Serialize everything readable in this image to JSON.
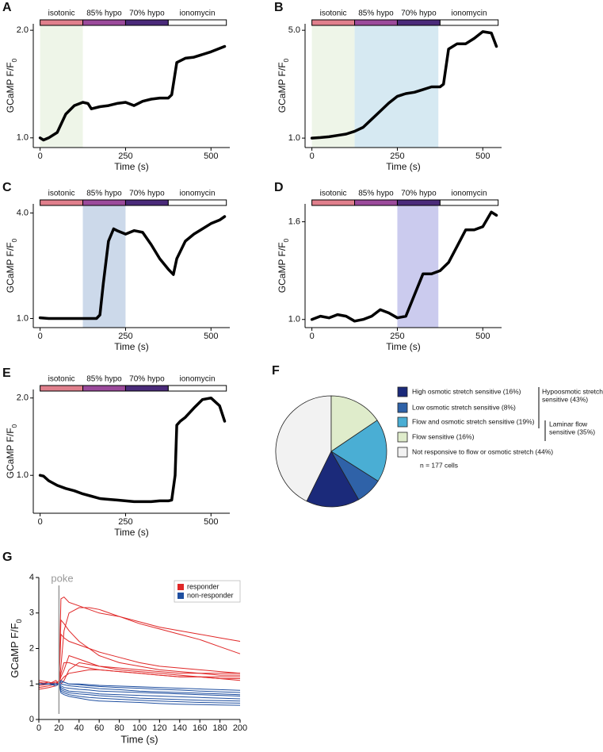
{
  "chart_data": [
    {
      "type": "line",
      "panel": "A",
      "xlabel": "Time (s)",
      "ylabel": {
        "text": "GCaMP F/F",
        "sub": "0"
      },
      "phases": [
        {
          "name": "isotonic",
          "start": 0,
          "end": 125,
          "color": "#e07f8c"
        },
        {
          "name": "85% hypo",
          "start": 125,
          "end": 250,
          "color": "#9b4a9b"
        },
        {
          "name": "70% hypo",
          "start": 250,
          "end": 375,
          "color": "#4a2a7a"
        },
        {
          "name": "ionomycin",
          "start": 375,
          "end": 545,
          "color": "#ffffff"
        }
      ],
      "shading": [
        {
          "start": 0,
          "end": 125,
          "color": "#eef5e8"
        }
      ],
      "x": [
        0,
        10,
        25,
        50,
        75,
        100,
        125,
        140,
        150,
        175,
        200,
        225,
        250,
        275,
        300,
        325,
        350,
        375,
        385,
        400,
        425,
        450,
        500,
        540
      ],
      "values": [
        1.0,
        0.98,
        1.0,
        1.05,
        1.22,
        1.3,
        1.33,
        1.32,
        1.27,
        1.29,
        1.3,
        1.32,
        1.33,
        1.3,
        1.34,
        1.36,
        1.37,
        1.37,
        1.4,
        1.7,
        1.74,
        1.75,
        1.8,
        1.85
      ],
      "color": "#000000",
      "xlim": [
        -20,
        555
      ],
      "xticks": [
        0,
        250,
        500
      ],
      "ylim": [
        0.91,
        2.06
      ],
      "yticks": [
        {
          "value": 1,
          "label": "1.0"
        },
        {
          "value": 2,
          "label": "2.0"
        }
      ]
    },
    {
      "type": "line",
      "panel": "B",
      "xlabel": "Time (s)",
      "ylabel": {
        "text": "GCaMP F/F",
        "sub": "0"
      },
      "phases": [
        {
          "name": "isotonic",
          "start": 0,
          "end": 125,
          "color": "#e07f8c"
        },
        {
          "name": "85% hypo",
          "start": 125,
          "end": 250,
          "color": "#9b4a9b"
        },
        {
          "name": "70% hypo",
          "start": 250,
          "end": 375,
          "color": "#4a2a7a"
        },
        {
          "name": "ionomycin",
          "start": 375,
          "end": 545,
          "color": "#ffffff"
        }
      ],
      "shading": [
        {
          "start": 0,
          "end": 125,
          "color": "#eef5e8"
        },
        {
          "start": 125,
          "end": 370,
          "color": "#d6e9f2"
        }
      ],
      "x": [
        0,
        25,
        50,
        75,
        100,
        125,
        150,
        175,
        200,
        225,
        250,
        275,
        300,
        325,
        350,
        375,
        385,
        400,
        425,
        450,
        475,
        500,
        525,
        540
      ],
      "values": [
        1.0,
        1.02,
        1.05,
        1.1,
        1.15,
        1.25,
        1.4,
        1.7,
        2.0,
        2.3,
        2.55,
        2.65,
        2.7,
        2.8,
        2.9,
        2.9,
        3.0,
        4.3,
        4.5,
        4.5,
        4.7,
        4.95,
        4.9,
        4.4
      ],
      "color": "#000000",
      "xlim": [
        -20,
        555
      ],
      "xticks": [
        0,
        250,
        500
      ],
      "ylim": [
        0.65,
        5.24
      ],
      "yticks": [
        {
          "value": 1,
          "label": "1.0"
        },
        {
          "value": 5,
          "label": "5.0"
        }
      ]
    },
    {
      "type": "line",
      "panel": "C",
      "xlabel": "Time (s)",
      "ylabel": {
        "text": "GCaMP F/F",
        "sub": "0"
      },
      "phases": [
        {
          "name": "isotonic",
          "start": 0,
          "end": 125,
          "color": "#e07f8c"
        },
        {
          "name": "85% hypo",
          "start": 125,
          "end": 250,
          "color": "#9b4a9b"
        },
        {
          "name": "70% hypo",
          "start": 250,
          "end": 375,
          "color": "#4a2a7a"
        },
        {
          "name": "ionomycin",
          "start": 375,
          "end": 545,
          "color": "#ffffff"
        }
      ],
      "shading": [
        {
          "start": 125,
          "end": 250,
          "color": "#ccd9ea"
        }
      ],
      "x": [
        0,
        25,
        50,
        75,
        100,
        125,
        150,
        165,
        175,
        185,
        200,
        215,
        225,
        250,
        275,
        300,
        325,
        350,
        375,
        390,
        400,
        425,
        450,
        475,
        500,
        525,
        540
      ],
      "values": [
        1.02,
        1.0,
        1.0,
        1.0,
        1.0,
        1.0,
        1.0,
        1.0,
        1.1,
        2.0,
        3.2,
        3.55,
        3.5,
        3.4,
        3.5,
        3.45,
        3.1,
        2.7,
        2.4,
        2.25,
        2.7,
        3.2,
        3.4,
        3.55,
        3.7,
        3.8,
        3.9
      ],
      "color": "#000000",
      "xlim": [
        -20,
        555
      ],
      "xticks": [
        0,
        250,
        500
      ],
      "ylim": [
        0.74,
        4.26
      ],
      "yticks": [
        {
          "value": 1,
          "label": "1.0"
        },
        {
          "value": 4,
          "label": "4.0"
        }
      ]
    },
    {
      "type": "line",
      "panel": "D",
      "xlabel": "Time (s)",
      "ylabel": {
        "text": "GCaMP F/F",
        "sub": "0"
      },
      "phases": [
        {
          "name": "isotonic",
          "start": 0,
          "end": 125,
          "color": "#e07f8c"
        },
        {
          "name": "85% hypo",
          "start": 125,
          "end": 250,
          "color": "#9b4a9b"
        },
        {
          "name": "70% hypo",
          "start": 250,
          "end": 375,
          "color": "#4a2a7a"
        },
        {
          "name": "ionomycin",
          "start": 375,
          "end": 545,
          "color": "#ffffff"
        }
      ],
      "shading": [
        {
          "start": 250,
          "end": 370,
          "color": "#cbcbee"
        }
      ],
      "x": [
        0,
        25,
        50,
        75,
        100,
        125,
        150,
        175,
        200,
        225,
        250,
        275,
        300,
        325,
        350,
        375,
        400,
        425,
        450,
        475,
        500,
        525,
        540
      ],
      "values": [
        1.0,
        1.02,
        1.01,
        1.03,
        1.02,
        0.99,
        1.0,
        1.02,
        1.06,
        1.04,
        1.01,
        1.02,
        1.15,
        1.28,
        1.28,
        1.3,
        1.35,
        1.45,
        1.55,
        1.55,
        1.57,
        1.66,
        1.64
      ],
      "color": "#000000",
      "xlim": [
        -20,
        555
      ],
      "xticks": [
        0,
        250,
        500
      ],
      "ylim": [
        0.95,
        1.71
      ],
      "yticks": [
        {
          "value": 1,
          "label": "1.0"
        },
        1.6
      ]
    },
    {
      "type": "line",
      "panel": "E",
      "xlabel": "Time (s)",
      "ylabel": {
        "text": "GCaMP F/F",
        "sub": "0"
      },
      "phases": [
        {
          "name": "isotonic",
          "start": 0,
          "end": 125,
          "color": "#e07f8c"
        },
        {
          "name": "85% hypo",
          "start": 125,
          "end": 250,
          "color": "#9b4a9b"
        },
        {
          "name": "70% hypo",
          "start": 250,
          "end": 375,
          "color": "#4a2a7a"
        },
        {
          "name": "ionomycin",
          "start": 375,
          "end": 545,
          "color": "#ffffff"
        }
      ],
      "shading": [],
      "x": [
        0,
        10,
        25,
        50,
        75,
        100,
        125,
        150,
        175,
        200,
        225,
        250,
        275,
        300,
        325,
        350,
        375,
        385,
        395,
        400,
        410,
        425,
        450,
        475,
        500,
        525,
        540
      ],
      "values": [
        1.0,
        0.99,
        0.93,
        0.87,
        0.83,
        0.8,
        0.76,
        0.73,
        0.7,
        0.69,
        0.68,
        0.67,
        0.66,
        0.66,
        0.66,
        0.67,
        0.67,
        0.68,
        1.0,
        1.65,
        1.7,
        1.75,
        1.87,
        1.98,
        2.0,
        1.9,
        1.7
      ],
      "color": "#000000",
      "xlim": [
        -20,
        555
      ],
      "xticks": [
        0,
        250,
        500
      ],
      "ylim": [
        0.51,
        2.11
      ],
      "yticks": [
        {
          "value": 1,
          "label": "1.0"
        },
        {
          "value": 2,
          "label": "2.0"
        }
      ]
    },
    {
      "type": "pie",
      "panel": "F",
      "categories": [
        "High osmotic stretch sensitive (16%)",
        "Low osmotic stretch sensitive (8%)",
        "Flow and osmotic stretch sensitive (19%)",
        "Flow sensitive (16%)",
        "Not responsive to flow or osmotic stretch (44%)"
      ],
      "values": [
        16,
        8,
        19,
        16,
        44
      ],
      "colors": [
        "#1b2a7a",
        "#2f62a8",
        "#4aaed4",
        "#dfeccb",
        "#f2f2f2"
      ],
      "annotations": [
        [
          "Hypoosmotic stretch",
          "sensitive (43%)"
        ],
        [
          "Laminar flow",
          "sensitive (35%)"
        ]
      ],
      "note": "n = 177 cells"
    },
    {
      "type": "multiline",
      "panel": "G",
      "xlabel": "Time (s)",
      "ylabel": {
        "text": "GCaMP F/F",
        "sub": "0"
      },
      "annotation": {
        "text": "poke",
        "x": 20
      },
      "groups": [
        {
          "name": "responder",
          "color": "#e02828"
        },
        {
          "name": "non-responder",
          "color": "#1f4fa0"
        }
      ],
      "x": [
        0,
        10,
        17,
        20,
        22,
        25,
        30,
        40,
        50,
        60,
        80,
        100,
        120,
        140,
        160,
        180,
        200
      ],
      "series": [
        {
          "group": 0,
          "values": [
            1.1,
            1.05,
            1.0,
            1.0,
            3.4,
            3.45,
            3.3,
            3.2,
            3.1,
            3.0,
            2.9,
            2.75,
            2.6,
            2.5,
            2.4,
            2.3,
            2.2
          ]
        },
        {
          "group": 0,
          "values": [
            1.0,
            1.0,
            1.05,
            1.0,
            1.5,
            2.5,
            3.0,
            3.15,
            3.15,
            3.1,
            2.9,
            2.7,
            2.55,
            2.4,
            2.25,
            2.05,
            1.85
          ]
        },
        {
          "group": 0,
          "values": [
            1.0,
            1.0,
            1.0,
            1.1,
            2.8,
            2.7,
            2.5,
            2.2,
            2.0,
            1.8,
            1.6,
            1.5,
            1.4,
            1.35,
            1.3,
            1.3,
            1.3
          ]
        },
        {
          "group": 0,
          "values": [
            0.95,
            1.0,
            1.0,
            1.0,
            2.4,
            2.3,
            2.2,
            2.1,
            2.0,
            1.9,
            1.75,
            1.6,
            1.5,
            1.45,
            1.4,
            1.35,
            1.3
          ]
        },
        {
          "group": 0,
          "values": [
            0.9,
            0.95,
            1.0,
            1.0,
            1.2,
            1.4,
            1.8,
            1.7,
            1.6,
            1.5,
            1.4,
            1.35,
            1.3,
            1.25,
            1.2,
            1.2,
            1.2
          ]
        },
        {
          "group": 0,
          "values": [
            1.0,
            1.05,
            1.0,
            1.0,
            1.3,
            1.6,
            1.6,
            1.5,
            1.45,
            1.4,
            1.35,
            1.3,
            1.25,
            1.2,
            1.2,
            1.15,
            1.15
          ]
        },
        {
          "group": 0,
          "values": [
            1.05,
            1.0,
            1.1,
            1.0,
            1.1,
            1.2,
            1.3,
            1.35,
            1.4,
            1.4,
            1.35,
            1.3,
            1.25,
            1.2,
            1.2,
            1.15,
            1.1
          ]
        },
        {
          "group": 0,
          "values": [
            0.85,
            0.9,
            0.95,
            1.0,
            1.0,
            1.1,
            1.4,
            1.6,
            1.55,
            1.5,
            1.45,
            1.4,
            1.35,
            1.3,
            1.3,
            1.25,
            1.25
          ]
        },
        {
          "group": 1,
          "values": [
            1.0,
            1.0,
            1.0,
            1.0,
            1.1,
            1.05,
            1.0,
            0.98,
            0.95,
            0.93,
            0.9,
            0.88,
            0.85,
            0.83,
            0.8,
            0.78,
            0.76
          ]
        },
        {
          "group": 1,
          "values": [
            1.0,
            1.0,
            1.0,
            1.0,
            1.0,
            0.98,
            0.95,
            0.92,
            0.9,
            0.87,
            0.84,
            0.8,
            0.78,
            0.76,
            0.74,
            0.72,
            0.7
          ]
        },
        {
          "group": 1,
          "values": [
            1.0,
            1.0,
            0.95,
            1.0,
            0.95,
            0.9,
            0.88,
            0.85,
            0.83,
            0.8,
            0.78,
            0.76,
            0.74,
            0.72,
            0.7,
            0.68,
            0.66
          ]
        },
        {
          "group": 1,
          "values": [
            1.0,
            1.0,
            1.0,
            1.0,
            0.9,
            0.85,
            0.8,
            0.78,
            0.75,
            0.72,
            0.7,
            0.68,
            0.66,
            0.64,
            0.62,
            0.6,
            0.58
          ]
        },
        {
          "group": 1,
          "values": [
            1.0,
            1.0,
            1.0,
            1.0,
            0.85,
            0.8,
            0.75,
            0.72,
            0.7,
            0.67,
            0.64,
            0.6,
            0.58,
            0.56,
            0.54,
            0.53,
            0.52
          ]
        },
        {
          "group": 1,
          "values": [
            1.0,
            1.0,
            1.0,
            1.0,
            0.8,
            0.75,
            0.7,
            0.65,
            0.62,
            0.6,
            0.57,
            0.54,
            0.52,
            0.5,
            0.48,
            0.47,
            0.46
          ]
        },
        {
          "group": 1,
          "values": [
            1.0,
            1.0,
            1.0,
            1.0,
            0.75,
            0.7,
            0.65,
            0.6,
            0.55,
            0.52,
            0.5,
            0.48,
            0.45,
            0.43,
            0.42,
            0.41,
            0.4
          ]
        },
        {
          "group": 1,
          "values": [
            1.0,
            1.0,
            1.0,
            1.0,
            1.05,
            1.05,
            1.0,
            1.0,
            0.98,
            0.96,
            0.94,
            0.92,
            0.9,
            0.88,
            0.86,
            0.84,
            0.82
          ]
        }
      ],
      "xlim": [
        0,
        200
      ],
      "xticks": [
        0,
        20,
        40,
        60,
        80,
        100,
        120,
        140,
        160,
        180,
        200
      ],
      "ylim": [
        0,
        4
      ],
      "yticks": [
        0,
        1,
        2,
        3,
        4
      ]
    }
  ]
}
